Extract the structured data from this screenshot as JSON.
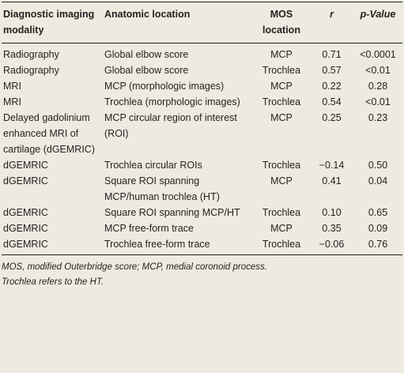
{
  "table": {
    "header": [
      "Diagnostic imaging modality",
      "Anatomic location",
      "MOS location",
      "r",
      "p-Value"
    ],
    "rows": [
      [
        "Radiography",
        "Global elbow score",
        "MCP",
        "0.71",
        "<0.0001"
      ],
      [
        "Radiography",
        "Global elbow score",
        "Trochlea",
        "0.57",
        "<0.01"
      ],
      [
        "MRI",
        "MCP (morphologic images)",
        "MCP",
        "0.22",
        "0.28"
      ],
      [
        "MRI",
        "Trochlea (morphologic images)",
        "Trochlea",
        "0.54",
        "<0.01"
      ],
      [
        "Delayed gadolinium enhanced MRI of cartilage (dGEMRIC)",
        "MCP circular region of interest (ROI)",
        "MCP",
        "0.25",
        "0.23"
      ],
      [
        "dGEMRIC",
        "Trochlea circular ROIs",
        "Trochlea",
        "−0.14",
        "0.50"
      ],
      [
        "dGEMRIC",
        "Square ROI spanning MCP/human trochlea (HT)",
        "MCP",
        "0.41",
        "0.04"
      ],
      [
        "dGEMRIC",
        "Square ROI spanning MCP/HT",
        "Trochlea",
        "0.10",
        "0.65"
      ],
      [
        "dGEMRIC",
        "MCP free-form trace",
        "MCP",
        "0.35",
        "0.09"
      ],
      [
        "dGEMRIC",
        "Trochlea free-form trace",
        "Trochlea",
        "−0.06",
        "0.76"
      ]
    ]
  },
  "footnotes": [
    "MOS, modified Outerbridge score; MCP, medial coronoid process.",
    "Trochlea refers to the HT."
  ]
}
